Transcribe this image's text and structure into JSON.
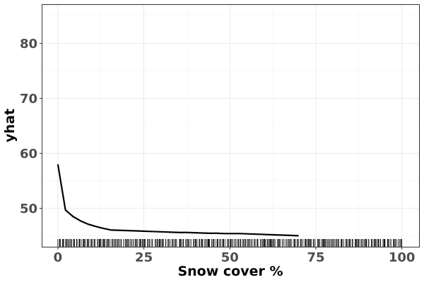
{
  "chart_data": {
    "type": "line",
    "title": "",
    "xlabel": "Snow cover %",
    "ylabel": "yhat",
    "xlim": [
      -4.5,
      105
    ],
    "ylim": [
      43,
      87
    ],
    "xticks": [
      0,
      25,
      50,
      75,
      100
    ],
    "yticks": [
      50,
      60,
      70,
      80
    ],
    "grid": true,
    "legend": "none",
    "series": [
      {
        "x": [
          0,
          2.2,
          4.4,
          6.6,
          8.8,
          11,
          13.2,
          15.4,
          17.6,
          19.8,
          22,
          24.2,
          26.4,
          28.6,
          30.8,
          33,
          35.2,
          37.4,
          39.6,
          41.8,
          44,
          46.2,
          48.4,
          50.6,
          52.8,
          55,
          57.2,
          59.4,
          61.6,
          63.8,
          66,
          68.2,
          70
        ],
        "y": [
          58,
          49.7,
          48.5,
          47.7,
          47.1,
          46.7,
          46.35,
          46.05,
          46.0,
          45.95,
          45.9,
          45.85,
          45.8,
          45.75,
          45.7,
          45.65,
          45.6,
          45.6,
          45.55,
          45.5,
          45.45,
          45.45,
          45.4,
          45.4,
          45.4,
          45.35,
          45.3,
          45.25,
          45.2,
          45.15,
          45.1,
          45.05,
          45.0
        ]
      }
    ],
    "rug": {
      "x_min": 0,
      "x_max": 100,
      "count": 340
    },
    "colors": {
      "line": "#000000",
      "rug": "#000000",
      "grid": "#ebebeb",
      "tick_text": "#4d4d4d"
    }
  }
}
